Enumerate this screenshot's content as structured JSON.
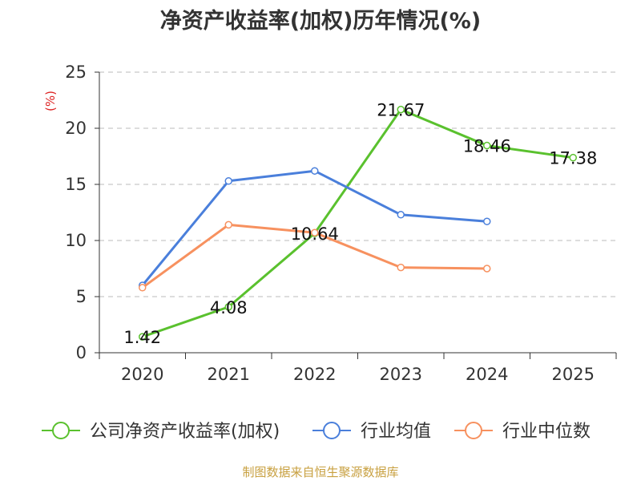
{
  "title": "净资产收益率(加权)历年情况(%)",
  "source": "制图数据来自恒生聚源数据库",
  "chart_data": {
    "type": "line",
    "title": "净资产收益率(加权)历年情况(%)",
    "ylabel": "(%)",
    "xlabel": "",
    "ylim": [
      0,
      25
    ],
    "yticks": [
      0,
      5,
      10,
      15,
      20,
      25
    ],
    "categories": [
      "2020",
      "2021",
      "2022",
      "2023",
      "2024",
      "2025"
    ],
    "grid": true,
    "legend_position": "bottom",
    "series": [
      {
        "name": "公司净资产收益率(加权)",
        "color": "#5ac12e",
        "values": [
          1.42,
          4.08,
          10.64,
          21.67,
          18.46,
          17.38
        ],
        "labels": [
          "1.42",
          "4.08",
          "10.64",
          "21.67",
          "18.46",
          "17.38"
        ],
        "show_labels": true
      },
      {
        "name": "行业均值",
        "color": "#4a7fdb",
        "values": [
          6.0,
          15.3,
          16.2,
          12.3,
          11.7,
          null
        ],
        "show_labels": false
      },
      {
        "name": "行业中位数",
        "color": "#f7915f",
        "values": [
          5.8,
          11.4,
          10.7,
          7.6,
          7.5,
          null
        ],
        "show_labels": false
      }
    ]
  }
}
